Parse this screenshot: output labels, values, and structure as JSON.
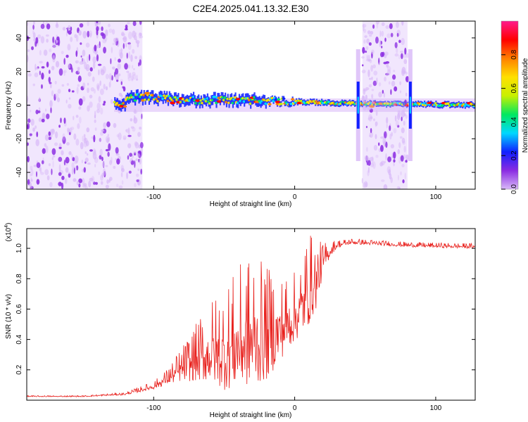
{
  "title": "C2E4.2025.041.13.32.E30",
  "colors": {
    "line": "#e8201c",
    "axis": "#000000",
    "colormap": [
      "#d8b8f8",
      "#8a2be2",
      "#1020ff",
      "#00d8ff",
      "#00e860",
      "#c8f000",
      "#ffe000",
      "#ff8000",
      "#ff0000",
      "#ff1a8c"
    ]
  },
  "chart_data": [
    {
      "type": "heatmap",
      "xlabel": "Height of straight line (km)",
      "ylabel": "Frequency (Hz)",
      "xlim": [
        -190,
        128
      ],
      "ylim": [
        -50,
        50
      ],
      "x_ticks": [
        -100,
        0,
        100
      ],
      "y_ticks": [
        -40,
        -20,
        0,
        20,
        40
      ],
      "colorbar": {
        "label": "Normalized spectral amplitude",
        "range": [
          0.0,
          1.0
        ],
        "ticks": [
          0.0,
          0.2,
          0.4,
          0.6,
          0.8
        ]
      },
      "regions": [
        {
          "name": "broadband noise",
          "x_range": [
            -190,
            -108
          ],
          "freq_range": [
            -50,
            50
          ]
        },
        {
          "name": "signal band",
          "x_range": [
            -128,
            128
          ],
          "center_hz": [
            [
              -120,
              5
            ],
            [
              -80,
              3
            ],
            [
              -40,
              3
            ],
            [
              0,
              2
            ],
            [
              40,
              1
            ],
            [
              128,
              0
            ]
          ]
        },
        {
          "name": "broadband noise",
          "x_range": [
            48,
            80
          ],
          "freq_range": [
            -50,
            50
          ]
        },
        {
          "name": "spike",
          "x": 45
        },
        {
          "name": "spike",
          "x": 82
        }
      ]
    },
    {
      "type": "line",
      "xlabel": "Height of straight line (km)",
      "ylabel": "SNR (10 * v/v)",
      "y_multiplier": "(x10",
      "y_multiplier_exp": "4",
      "xlim": [
        -190,
        128
      ],
      "ylim": [
        0,
        11300
      ],
      "x_ticks": [
        -100,
        0,
        100
      ],
      "y_ticks": [
        2000,
        4000,
        6000,
        8000,
        10000
      ],
      "y_tick_labels": [
        "0.2",
        "0.4",
        "0.6",
        "0.8",
        "1.0"
      ],
      "series": [
        {
          "x": [
            -190,
            -150,
            -120,
            -100,
            -90,
            -80,
            -70,
            -60,
            -50,
            -40,
            -30,
            -20,
            -10,
            0,
            5,
            10,
            15,
            20,
            25,
            30,
            40,
            60,
            80,
            100,
            128
          ],
          "y": [
            250,
            250,
            400,
            900,
            1400,
            2000,
            2500,
            3000,
            2900,
            3500,
            3800,
            3800,
            4500,
            5400,
            6000,
            7000,
            7500,
            9000,
            9800,
            10200,
            10400,
            10300,
            10200,
            10150,
            10100
          ],
          "noise_amp": [
            40,
            40,
            80,
            250,
            500,
            1100,
            1800,
            2600,
            3200,
            3800,
            4200,
            3600,
            2600,
            2200,
            2500,
            3000,
            2200,
            1000,
            500,
            250,
            180,
            160,
            160,
            160,
            160
          ]
        }
      ]
    }
  ]
}
